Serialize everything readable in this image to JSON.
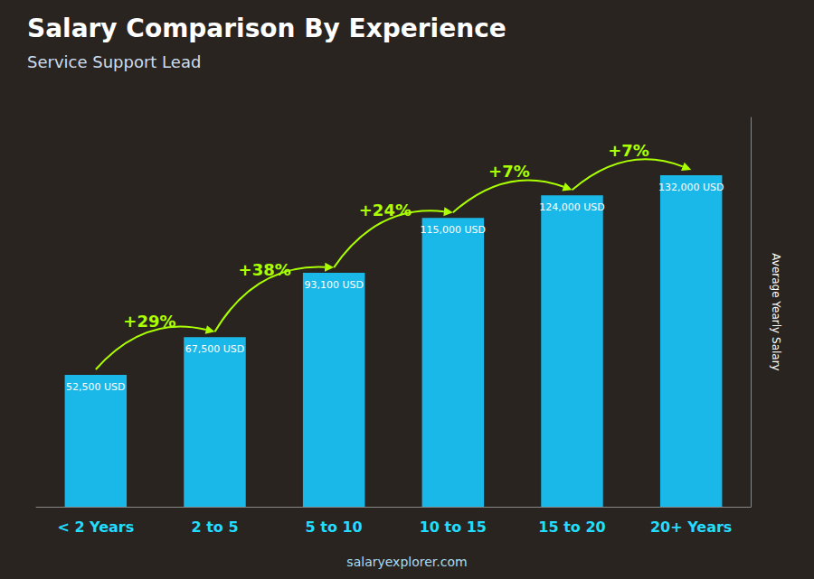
{
  "chart_data": {
    "type": "bar",
    "title": "Salary Comparison By Experience",
    "subtitle": "Service Support Lead",
    "categories": [
      "< 2 Years",
      "2 to 5",
      "5 to 10",
      "10 to 15",
      "15 to 20",
      "20+ Years"
    ],
    "values": [
      52500,
      67500,
      93100,
      115000,
      124000,
      132000
    ],
    "value_labels": [
      "52,500 USD",
      "67,500 USD",
      "93,100 USD",
      "115,000 USD",
      "124,000 USD",
      "132,000 USD"
    ],
    "data_labels": true,
    "color": "#1ab8e8",
    "ylabel": "Average Yearly Salary",
    "ylim": [
      0,
      155000
    ],
    "tick_labels": "x",
    "grid": false,
    "annotations": [
      "+29%",
      "+38%",
      "+24%",
      "+7%",
      "+7%",
      "salaryexplorer.com"
    ]
  }
}
